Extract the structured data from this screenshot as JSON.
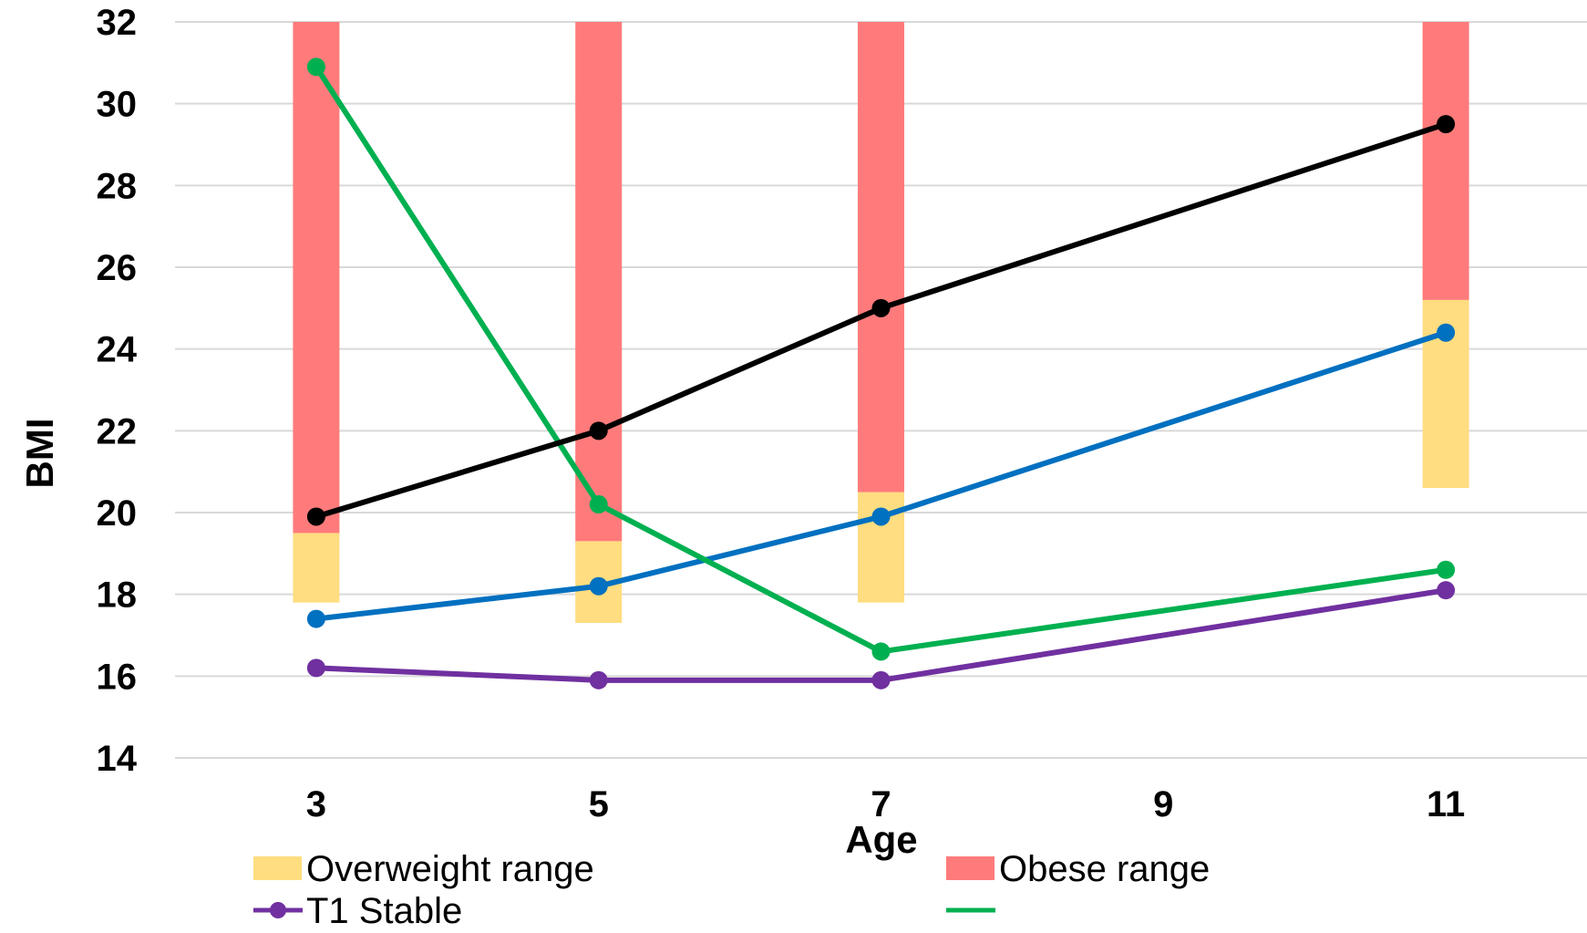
{
  "chart_data": {
    "type": "line",
    "xlabel": "Age",
    "ylabel": "BMI",
    "x": [
      3,
      5,
      7,
      9,
      11
    ],
    "x_ticks": [
      "3",
      "5",
      "7",
      "9",
      "11"
    ],
    "y_ticks": [
      "14",
      "16",
      "18",
      "20",
      "22",
      "24",
      "26",
      "28",
      "30",
      "32"
    ],
    "xlim": [
      2,
      12
    ],
    "ylim": [
      14,
      32
    ],
    "grid": true,
    "legend_position": "bottom",
    "range_bars": [
      {
        "name": "Overweight range",
        "color": "#ffdd80",
        "points": [
          {
            "x": 3,
            "low": 17.8,
            "high": 19.5
          },
          {
            "x": 5,
            "low": 17.3,
            "high": 19.3
          },
          {
            "x": 7,
            "low": 17.8,
            "high": 20.5
          },
          {
            "x": 11,
            "low": 20.6,
            "high": 25.2
          }
        ]
      },
      {
        "name": "Obese range",
        "color": "#ff7b7b",
        "points": [
          {
            "x": 3,
            "low": 19.5,
            "high": 32
          },
          {
            "x": 5,
            "low": 19.3,
            "high": 32
          },
          {
            "x": 7,
            "low": 20.5,
            "high": 32
          },
          {
            "x": 11,
            "low": 25.2,
            "high": 32
          }
        ]
      }
    ],
    "series": [
      {
        "name": "T1 Stable",
        "color": "#7030a0",
        "x": [
          3,
          5,
          7,
          11
        ],
        "values": [
          16.2,
          15.9,
          15.9,
          18.1
        ]
      },
      {
        "name": "",
        "color": "#0070c0",
        "x": [
          3,
          5,
          7,
          11
        ],
        "values": [
          17.4,
          18.2,
          19.9,
          24.4
        ]
      },
      {
        "name": "",
        "color": "#00b050",
        "x": [
          3,
          5,
          7,
          11
        ],
        "values": [
          30.9,
          20.2,
          16.6,
          18.6
        ]
      },
      {
        "name": "",
        "color": "#000000",
        "x": [
          3,
          5,
          7,
          11
        ],
        "values": [
          19.9,
          22.0,
          25.0,
          29.5
        ]
      }
    ],
    "legend": [
      {
        "label": "Overweight range",
        "kind": "box",
        "color": "#ffdd80"
      },
      {
        "label": "Obese range",
        "kind": "box",
        "color": "#ff7b7b"
      },
      {
        "label": "T1 Stable",
        "kind": "line-marker",
        "color": "#7030a0"
      },
      {
        "label": "",
        "kind": "line",
        "color": "#00b050"
      }
    ]
  }
}
